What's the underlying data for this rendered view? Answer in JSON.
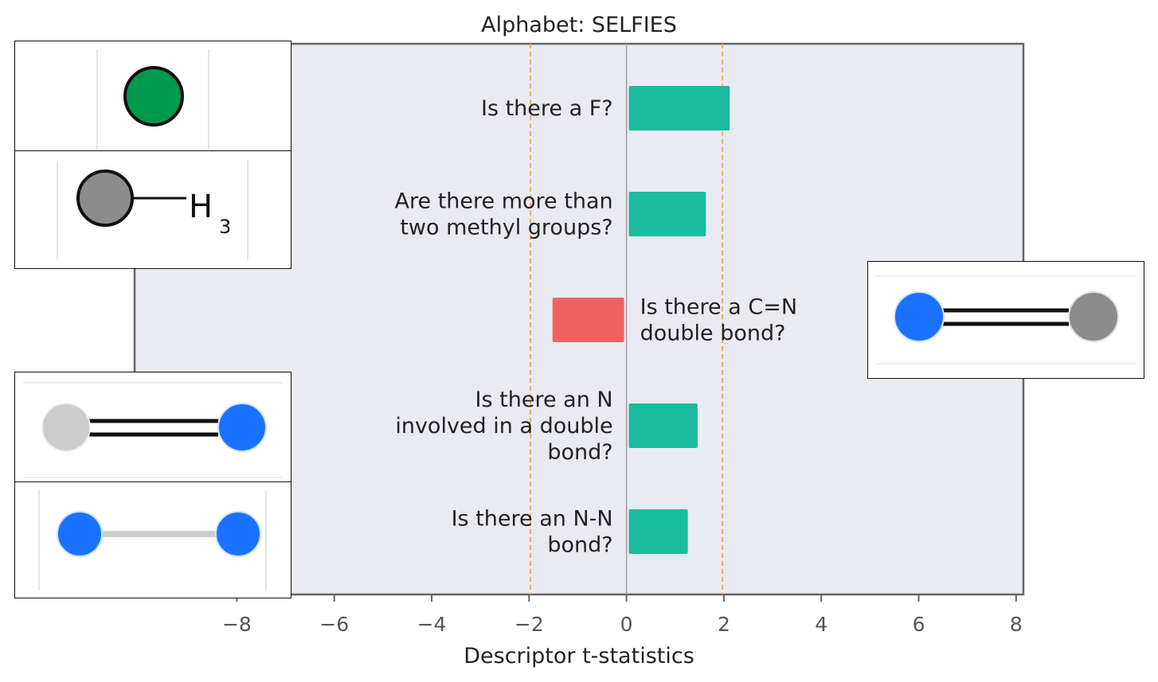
{
  "chart_data": {
    "type": "bar",
    "orientation": "horizontal",
    "title": "Alphabet: SELFIES",
    "xlabel": "Descriptor t-statistics",
    "ylabel": "",
    "xlim": [
      -10.1,
      8.15
    ],
    "xticks": [
      -8,
      -6,
      -4,
      -2,
      0,
      2,
      4,
      6,
      8
    ],
    "xtick_labels": [
      "−8",
      "−6",
      "−4",
      "−2",
      "0",
      "2",
      "4",
      "6",
      "8"
    ],
    "significance_lines": [
      -1.97,
      1.97
    ],
    "categories": [
      [
        "Is there a F?"
      ],
      [
        "Are there more than",
        "two methyl groups?"
      ],
      [
        "Is there a C=N",
        "double bond?"
      ],
      [
        "Is there an N",
        "involved in a double",
        "bond?"
      ],
      [
        "Is there an N-N",
        "bond?"
      ]
    ],
    "values": [
      2.12,
      1.63,
      -1.52,
      1.46,
      1.26
    ],
    "grid": false,
    "colors": {
      "positive": "#1abc9c",
      "negative": "#f06262",
      "threshold": "#f5a33b",
      "zero_line": "#9e9e9e",
      "plot_bg": "#eaeaf2",
      "spine": "#666666",
      "text": "#222222",
      "tick_text": "#555555"
    }
  },
  "insets": {
    "f_atom": {
      "icon": "green-atom-icon",
      "color": "#00994c"
    },
    "methyl": {
      "icon": "methyl-group-icon",
      "color": "#8c8c8c",
      "label_main": "H",
      "label_sub": "3"
    },
    "c_double_n": {
      "icon": "c-double-n-bond-icon",
      "atom_colors": [
        "#1a73ff",
        "#8c8c8c"
      ]
    },
    "n_double_bond": {
      "icon": "n-double-bond-icon",
      "atom_colors": [
        "#cccccc",
        "#1a73ff"
      ]
    },
    "n_n_bond": {
      "icon": "n-n-bond-icon",
      "atom_colors": [
        "#1a73ff",
        "#1a73ff"
      ]
    }
  }
}
